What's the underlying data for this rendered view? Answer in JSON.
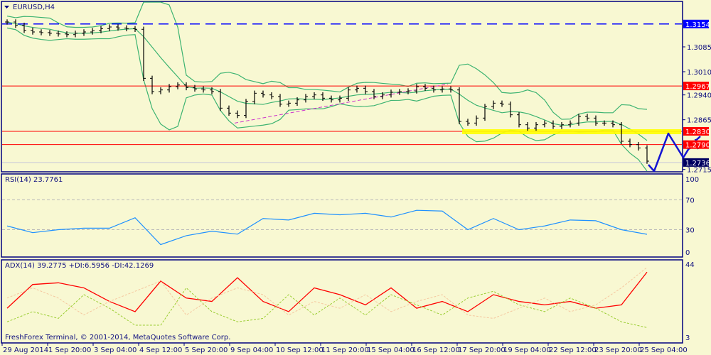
{
  "chart_data": [
    {
      "type": "ohlc",
      "title": "EURUSD,H4",
      "symbol": "EURUSD",
      "timeframe": "H4",
      "yticks": [
        "1.3085",
        "1.3010",
        "1.2940",
        "1.2865",
        "1.2715"
      ],
      "ylim": [
        1.2705,
        1.3225
      ],
      "horizontal_lines": [
        {
          "price": 1.3154,
          "label": "1.3154",
          "style": "dashed",
          "color": "#0000ff"
        },
        {
          "price": 1.2967,
          "label": "1.2967",
          "style": "solid",
          "color": "#ff0000"
        },
        {
          "price": 1.283,
          "label": "1.2830",
          "style": "solid",
          "color": "#ff0000"
        },
        {
          "price": 1.279,
          "label": "1.2790",
          "style": "solid",
          "color": "#ff0000"
        }
      ],
      "current_price": {
        "price": 1.2736,
        "label": "1.2736"
      },
      "support_zone": {
        "price": 1.283,
        "color": "#ffff00"
      },
      "trendline_color": "#cc33cc",
      "band_color": "#3cb371",
      "forecast_color": "#1414d2",
      "closes": [
        1.316,
        1.315,
        1.3135,
        1.313,
        1.3128,
        1.3126,
        1.3124,
        1.3122,
        1.3126,
        1.313,
        1.3134,
        1.314,
        1.3145,
        1.3142,
        1.314,
        1.3138,
        1.299,
        1.295,
        1.2955,
        1.2965,
        1.297,
        1.2962,
        1.2958,
        1.2955,
        1.295,
        1.29,
        1.2885,
        1.2878,
        1.292,
        1.2945,
        1.294,
        1.2935,
        1.2912,
        1.2915,
        1.2925,
        1.2935,
        1.294,
        1.293,
        1.2925,
        1.293,
        1.2955,
        1.296,
        1.295,
        1.2935,
        1.294,
        1.2948,
        1.295,
        1.2952,
        1.2965,
        1.296,
        1.2955,
        1.2958,
        1.2955,
        1.286,
        1.2855,
        1.287,
        1.2905,
        1.2915,
        1.2912,
        1.288,
        1.285,
        1.284,
        1.285,
        1.2855,
        1.2845,
        1.285,
        1.2855,
        1.2875,
        1.287,
        1.2855,
        1.2855,
        1.285,
        1.28,
        1.279,
        1.278,
        1.274
      ]
    },
    {
      "type": "line",
      "title": "RSI(14) 23.7761",
      "yticks": [
        "100",
        "70",
        "30",
        "0"
      ],
      "ylim": [
        0,
        100
      ],
      "levels": [
        70,
        30
      ],
      "color": "#1e90ff",
      "values": [
        35,
        26,
        30,
        32,
        32,
        46,
        10,
        22,
        28,
        24,
        45,
        43,
        52,
        50,
        52,
        47,
        56,
        55,
        30,
        45,
        30,
        35,
        43,
        42,
        30,
        23.8
      ]
    },
    {
      "type": "line",
      "title": "ADX(14) 39.2775 +DI:6.5956 -DI:42.1269",
      "yticks": [
        "44",
        "3"
      ],
      "ylim": [
        3,
        44
      ],
      "series": [
        {
          "name": "ADX",
          "color": "#ff0000",
          "values": [
            18,
            32,
            33,
            30,
            22,
            16,
            34,
            24,
            22,
            36,
            22,
            16,
            30,
            26,
            20,
            30,
            18,
            22,
            16,
            26,
            22,
            20,
            22,
            18,
            20,
            39.3
          ]
        },
        {
          "name": "+DI",
          "color": "#9acd32",
          "values": [
            10,
            16,
            12,
            26,
            18,
            8,
            8,
            30,
            16,
            10,
            12,
            26,
            14,
            24,
            14,
            26,
            20,
            14,
            24,
            28,
            20,
            16,
            24,
            18,
            10,
            6.6
          ]
        },
        {
          "name": "-DI",
          "color": "#f5c8a0",
          "values": [
            24,
            30,
            24,
            14,
            22,
            28,
            34,
            14,
            24,
            30,
            26,
            14,
            22,
            18,
            26,
            16,
            22,
            26,
            14,
            12,
            18,
            24,
            16,
            20,
            30,
            42.1
          ]
        }
      ]
    }
  ],
  "xticks": [
    "29 Aug 2014",
    "1 Sep 20:00",
    "3 Sep 04:00",
    "4 Sep 12:00",
    "5 Sep 20:00",
    "9 Sep 04:00",
    "10 Sep 12:00",
    "11 Sep 20:00",
    "15 Sep 04:00",
    "16 Sep 12:00",
    "17 Sep 20:00",
    "19 Sep 04:00",
    "22 Sep 12:00",
    "23 Sep 20:00",
    "25 Sep 04:00"
  ],
  "footer": "FreshForex Terminal, © 2001-2014, MetaQuotes Software Corp.",
  "colors": {
    "background": "#f8f8d2",
    "frame": "#00007f",
    "bars": "#000000"
  }
}
